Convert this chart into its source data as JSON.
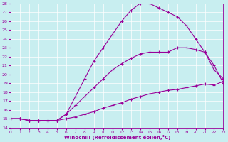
{
  "xlabel": "Windchill (Refroidissement éolien,°C)",
  "bg_color": "#c8eef0",
  "line_color": "#990099",
  "xlim": [
    0,
    23
  ],
  "ylim": [
    14,
    28
  ],
  "xticks": [
    0,
    1,
    2,
    3,
    4,
    5,
    6,
    7,
    8,
    9,
    10,
    11,
    12,
    13,
    14,
    15,
    16,
    17,
    18,
    19,
    20,
    21,
    22,
    23
  ],
  "yticks": [
    14,
    15,
    16,
    17,
    18,
    19,
    20,
    21,
    22,
    23,
    24,
    25,
    26,
    27,
    28
  ],
  "line_top_x": [
    0,
    1,
    2,
    3,
    4,
    5,
    6,
    7,
    8,
    9,
    10,
    11,
    12,
    13,
    14,
    15,
    16,
    17,
    18,
    19,
    20,
    21,
    22,
    23
  ],
  "line_top_y": [
    15,
    15,
    14.8,
    14.8,
    14.8,
    14.8,
    15.5,
    17.5,
    19.5,
    21.5,
    23.0,
    24.5,
    26.0,
    27.2,
    28.0,
    28.0,
    27.5,
    27.0,
    26.5,
    25.5,
    24.0,
    22.5,
    21.0,
    19.0
  ],
  "line_mid_x": [
    0,
    1,
    2,
    3,
    4,
    5,
    6,
    7,
    8,
    9,
    10,
    11,
    12,
    13,
    14,
    15,
    16,
    17,
    18,
    19,
    20,
    21,
    22,
    23
  ],
  "line_mid_y": [
    15,
    15,
    14.8,
    14.8,
    14.8,
    14.8,
    15.5,
    16.5,
    17.5,
    18.5,
    19.5,
    20.5,
    21.2,
    21.8,
    22.3,
    22.5,
    22.5,
    22.5,
    23.0,
    23.0,
    22.8,
    22.5,
    20.5,
    19.5
  ],
  "line_bot_x": [
    0,
    1,
    2,
    3,
    4,
    5,
    6,
    7,
    8,
    9,
    10,
    11,
    12,
    13,
    14,
    15,
    16,
    17,
    18,
    19,
    20,
    21,
    22,
    23
  ],
  "line_bot_y": [
    15,
    15,
    14.8,
    14.8,
    14.8,
    14.8,
    15.0,
    15.2,
    15.5,
    15.8,
    16.2,
    16.5,
    16.8,
    17.2,
    17.5,
    17.8,
    18.0,
    18.2,
    18.3,
    18.5,
    18.7,
    18.9,
    18.8,
    19.2
  ]
}
